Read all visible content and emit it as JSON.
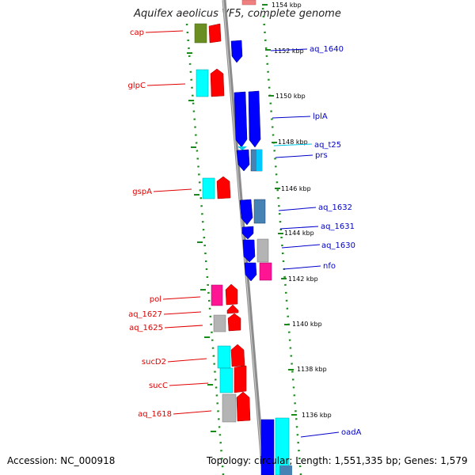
{
  "title": "Aquifex aeolicus VF5, complete genome",
  "footer": {
    "accession": "Accession: NC_000918",
    "topology": "Topology: circular; Length: 1,551,335 bp; Genes: 1,579"
  },
  "kbp_labels": [
    "1154 kbp",
    "1152 kbp",
    "1150 kbp",
    "1148 kbp",
    "1146 kbp",
    "1144 kbp",
    "1142 kbp",
    "1140 kbp",
    "1138 kbp",
    "1136 kbp"
  ],
  "left_genes": [
    "cap",
    "glpC",
    "gspA",
    "pol",
    "aq_1627",
    "aq_1625",
    "sucD2",
    "sucC",
    "aq_1618"
  ],
  "right_genes": [
    "aq_1640",
    "lplA",
    "aq_t25",
    "prs",
    "aq_1632",
    "aq_1631",
    "aq_1630",
    "nfo",
    "oadA"
  ],
  "colors": {
    "left_label": "#e00000",
    "right_label": "#0000cc",
    "trna_label": "#00c8e6",
    "backbone": "#888888",
    "tick": "#1a8a1a",
    "forward_gene": "#ff0000",
    "reverse_gene": "#0000ff",
    "cyan_gene": "#00ffff",
    "gray_gene": "#b4b4b4",
    "magenta_gene": "#ff1493",
    "olive_gene": "#6b8e23",
    "steel_gene": "#4682b4"
  }
}
